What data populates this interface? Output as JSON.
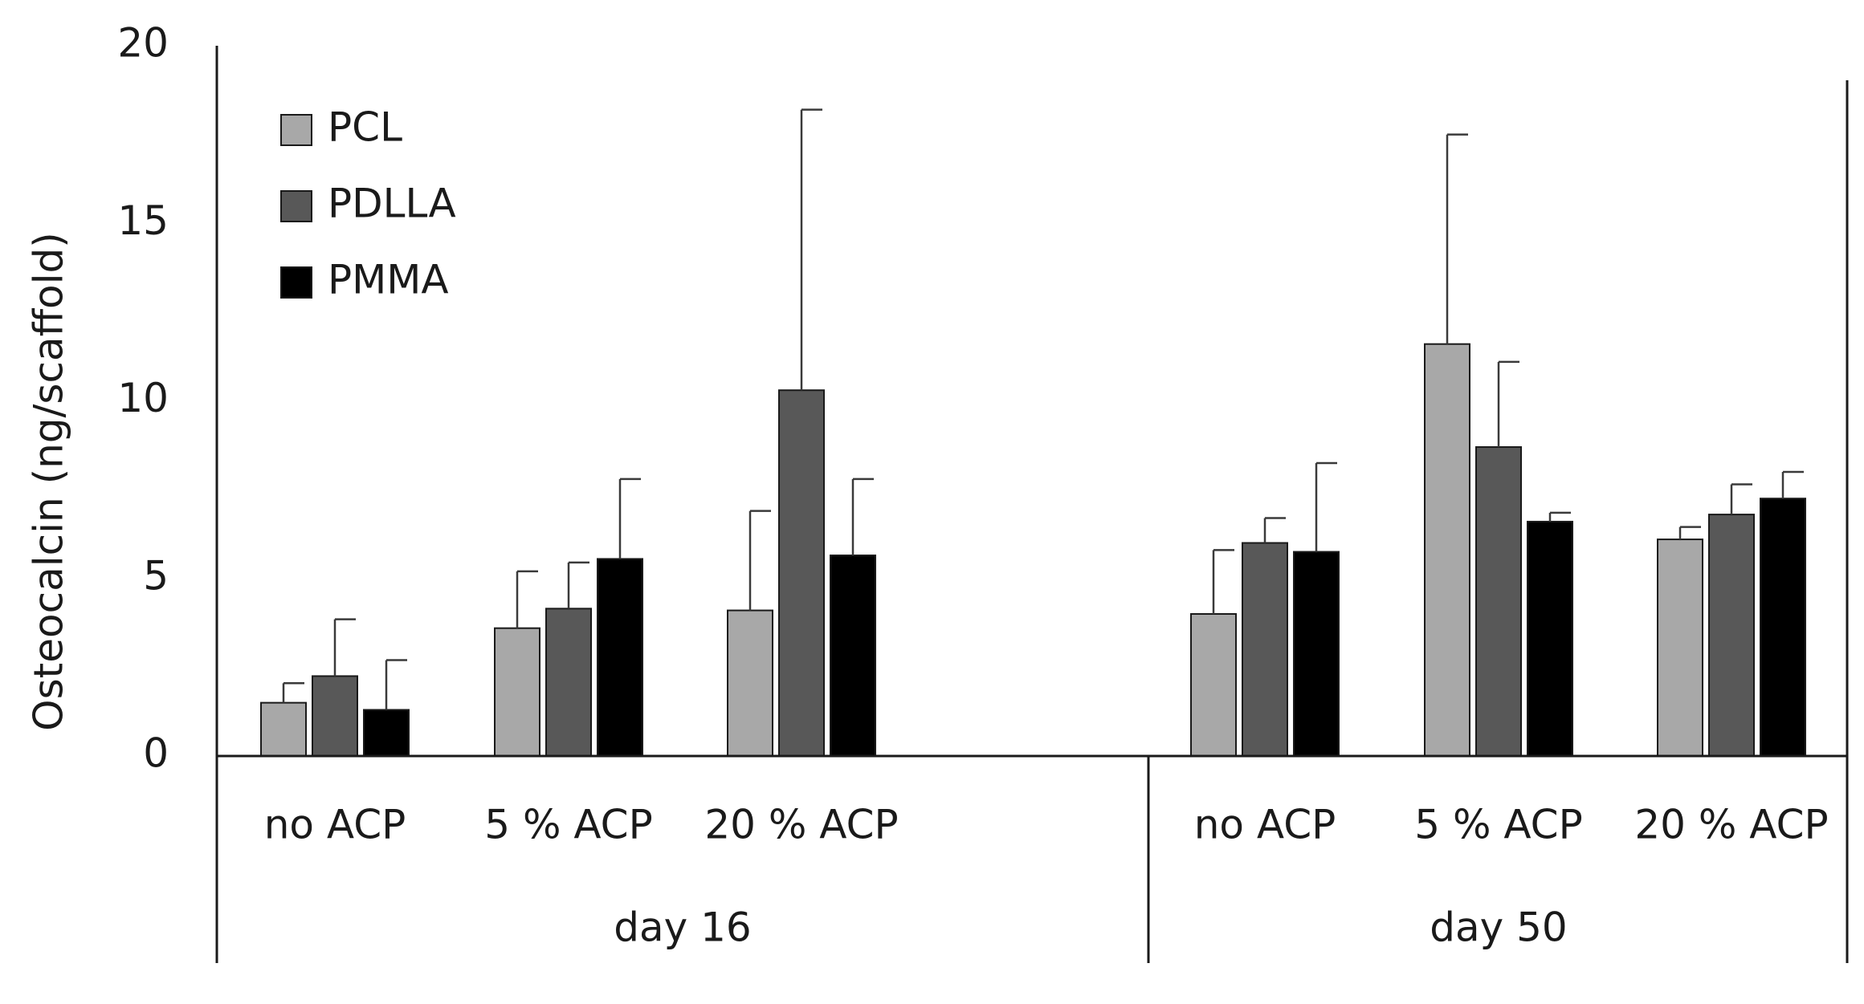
{
  "chart_data": {
    "type": "bar",
    "title": "",
    "xlabel": "",
    "ylabel": "Osteocalcin (ng/scaffold)",
    "ylim": [
      0,
      20
    ],
    "yticks": [
      "0",
      "5",
      "10",
      "15",
      "20"
    ],
    "groups": [
      {
        "label": "day 16",
        "categories": [
          "no ACP",
          "5 % ACP",
          "20 % ACP"
        ]
      },
      {
        "label": "day 50",
        "categories": [
          "no ACP",
          "5 % ACP",
          "20 % ACP"
        ]
      }
    ],
    "categories": [
      "no ACP",
      "5 % ACP",
      "20 % ACP",
      "no ACP",
      "5 % ACP",
      "20 % ACP"
    ],
    "series": [
      {
        "name": "PCL",
        "color": "#a8a8a8",
        "values": [
          1.5,
          3.6,
          4.1,
          4.0,
          11.6,
          6.1
        ],
        "errors": [
          0.55,
          1.6,
          2.8,
          1.8,
          5.9,
          0.35
        ]
      },
      {
        "name": "PDLLA",
        "color": "#585858",
        "values": [
          2.25,
          4.15,
          10.3,
          6.0,
          8.7,
          6.8
        ],
        "errors": [
          1.6,
          1.3,
          7.9,
          0.7,
          2.4,
          0.85
        ]
      },
      {
        "name": "PMMA",
        "color": "#000000",
        "values": [
          1.3,
          5.55,
          5.65,
          5.75,
          6.6,
          7.25
        ],
        "errors": [
          1.4,
          2.25,
          2.15,
          2.5,
          0.25,
          0.75
        ]
      }
    ],
    "legend_position": "top-left"
  }
}
